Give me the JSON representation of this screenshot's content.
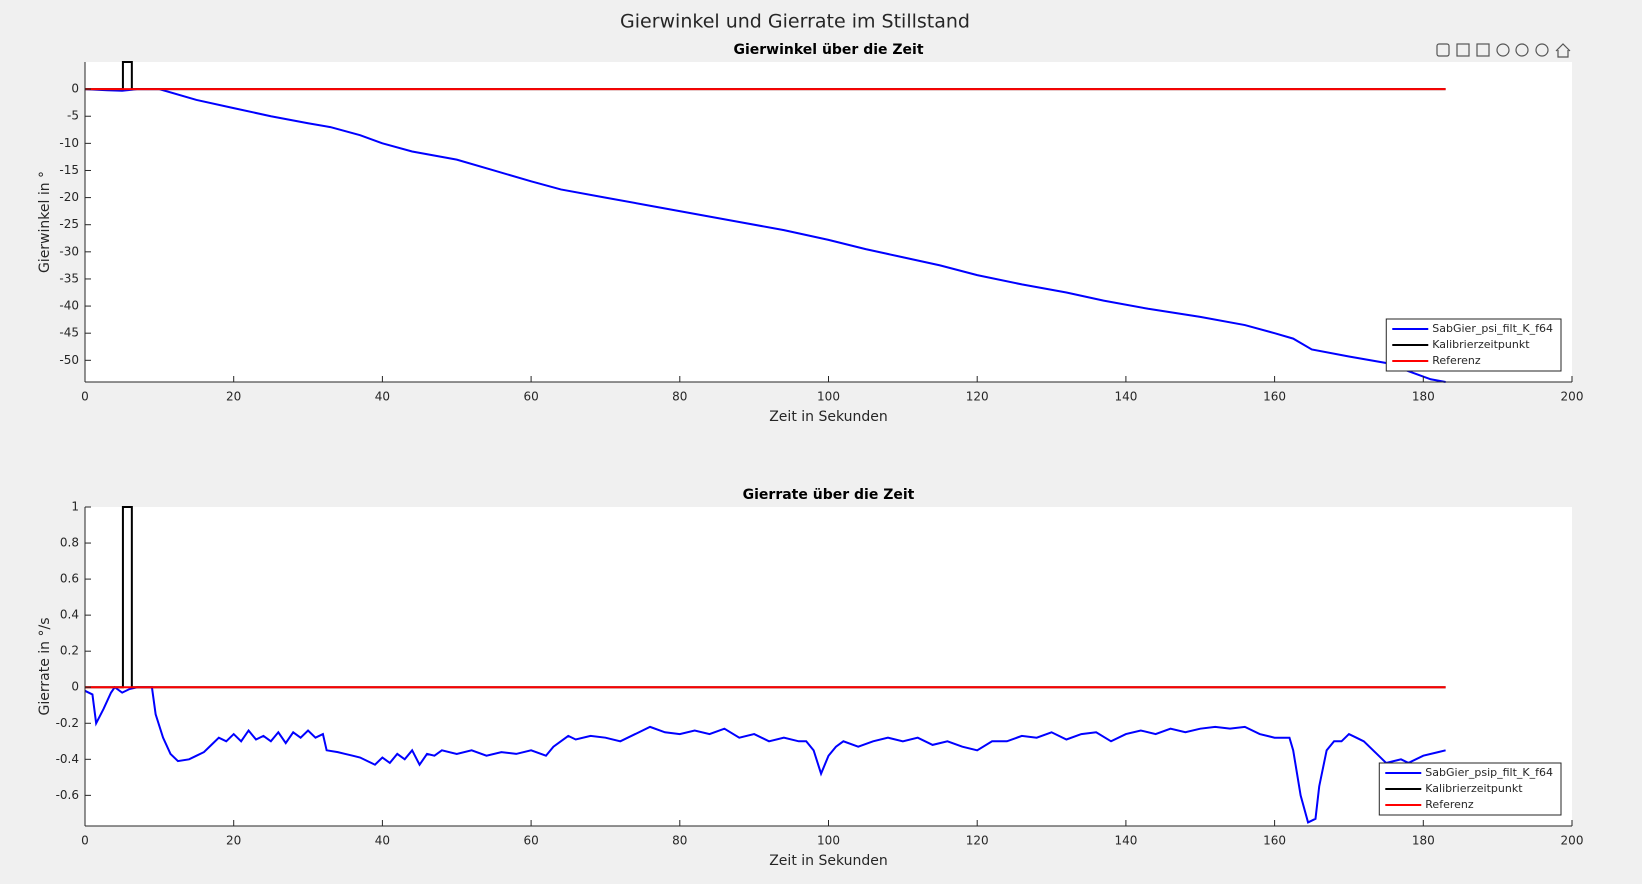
{
  "title": "Gierwinkel und Gierrate im Stillstand",
  "chart_data": [
    {
      "type": "line",
      "title": "Gierwinkel über die Zeit",
      "xlabel": "Zeit in Sekunden",
      "ylabel": "Gierwinkel in °",
      "xlim": [
        0,
        200
      ],
      "xticks": [
        0,
        20,
        40,
        60,
        80,
        100,
        120,
        140,
        160,
        180,
        200
      ],
      "ylim": [
        -54,
        5
      ],
      "yticks": [
        -50,
        -45,
        -40,
        -35,
        -30,
        -25,
        -20,
        -15,
        -10,
        -5,
        0
      ],
      "legend": "lower right",
      "series": [
        {
          "name": "SabGier_psi_filt_K_f64",
          "color": "#0000ff",
          "x": [
            0,
            3,
            5,
            7,
            10,
            15,
            20,
            25,
            30,
            33,
            37,
            40,
            44,
            50,
            55,
            60,
            64,
            70,
            76,
            82,
            88,
            94,
            100,
            105,
            110,
            115,
            120,
            126,
            132,
            137,
            143,
            150,
            156,
            160,
            162.5,
            165,
            170,
            175,
            178,
            181,
            183
          ],
          "values": [
            0,
            -0.2,
            -0.3,
            0,
            0,
            -2,
            -3.5,
            -5,
            -6.3,
            -7,
            -8.5,
            -10,
            -11.5,
            -13,
            -15,
            -17,
            -18.5,
            -20,
            -21.5,
            -23,
            -24.5,
            -26,
            -27.8,
            -29.5,
            -31,
            -32.5,
            -34.3,
            -36,
            -37.5,
            -39,
            -40.5,
            -42,
            -43.5,
            -45,
            -46,
            -48,
            -49.3,
            -50.5,
            -52,
            -53.5,
            -54
          ]
        },
        {
          "name": "Kalibrierzeitpunkt",
          "color": "#000000",
          "x": [
            0,
            5.1,
            5.1,
            6.3,
            6.3,
            183
          ],
          "values": [
            0,
            0,
            5,
            5,
            0,
            0
          ]
        },
        {
          "name": "Referenz",
          "color": "#ff0000",
          "x": [
            0,
            183
          ],
          "values": [
            0,
            0
          ]
        }
      ]
    },
    {
      "type": "line",
      "title": "Gierrate über die Zeit",
      "xlabel": "Zeit in Sekunden",
      "ylabel": "Gierrate in °/s",
      "xlim": [
        0,
        200
      ],
      "xticks": [
        0,
        20,
        40,
        60,
        80,
        100,
        120,
        140,
        160,
        180,
        200
      ],
      "ylim": [
        -0.77,
        1
      ],
      "yticks": [
        -0.6,
        -0.4,
        -0.2,
        0,
        0.2,
        0.4,
        0.6,
        0.8,
        1
      ],
      "legend": "lower right",
      "series": [
        {
          "name": "SabGier_psip_filt_K_f64",
          "color": "#0000ff",
          "x": [
            0,
            1,
            1.5,
            2.5,
            3.5,
            4,
            5,
            6,
            7,
            9,
            9.5,
            10.5,
            11.5,
            12.5,
            14,
            15,
            16,
            17,
            18,
            19,
            20,
            21,
            22,
            23,
            24,
            25,
            26,
            27,
            28,
            29,
            30,
            31,
            32,
            32.5,
            34,
            35,
            36,
            37,
            38,
            39,
            40,
            41,
            42,
            43,
            44,
            45,
            46,
            47,
            48,
            50,
            52,
            54,
            56,
            58,
            60,
            62,
            63,
            64,
            65,
            66,
            68,
            70,
            72,
            74,
            76,
            78,
            80,
            82,
            84,
            86,
            88,
            90,
            92,
            94,
            96,
            97,
            98,
            99,
            100,
            101,
            102,
            104,
            106,
            108,
            110,
            112,
            114,
            116,
            118,
            120,
            122,
            124,
            126,
            128,
            130,
            132,
            134,
            136,
            138,
            140,
            142,
            144,
            146,
            148,
            150,
            152,
            154,
            156,
            158,
            160,
            162,
            162.5,
            163.5,
            164.5,
            165.5,
            166,
            167,
            168,
            169,
            170,
            171,
            172,
            174,
            175,
            177,
            178,
            180,
            182,
            183
          ],
          "values": [
            -0.02,
            -0.04,
            -0.2,
            -0.12,
            -0.03,
            0,
            -0.03,
            -0.01,
            0,
            0,
            -0.15,
            -0.28,
            -0.37,
            -0.41,
            -0.4,
            -0.38,
            -0.36,
            -0.32,
            -0.28,
            -0.3,
            -0.26,
            -0.3,
            -0.24,
            -0.29,
            -0.27,
            -0.3,
            -0.25,
            -0.31,
            -0.25,
            -0.28,
            -0.24,
            -0.28,
            -0.26,
            -0.35,
            -0.36,
            -0.37,
            -0.38,
            -0.39,
            -0.41,
            -0.43,
            -0.39,
            -0.42,
            -0.37,
            -0.4,
            -0.35,
            -0.43,
            -0.37,
            -0.38,
            -0.35,
            -0.37,
            -0.35,
            -0.38,
            -0.36,
            -0.37,
            -0.35,
            -0.38,
            -0.33,
            -0.3,
            -0.27,
            -0.29,
            -0.27,
            -0.28,
            -0.3,
            -0.26,
            -0.22,
            -0.25,
            -0.26,
            -0.24,
            -0.26,
            -0.23,
            -0.28,
            -0.26,
            -0.3,
            -0.28,
            -0.3,
            -0.3,
            -0.35,
            -0.48,
            -0.38,
            -0.33,
            -0.3,
            -0.33,
            -0.3,
            -0.28,
            -0.3,
            -0.28,
            -0.32,
            -0.3,
            -0.33,
            -0.35,
            -0.3,
            -0.3,
            -0.27,
            -0.28,
            -0.25,
            -0.29,
            -0.26,
            -0.25,
            -0.3,
            -0.26,
            -0.24,
            -0.26,
            -0.23,
            -0.25,
            -0.23,
            -0.22,
            -0.23,
            -0.22,
            -0.26,
            -0.28,
            -0.28,
            -0.35,
            -0.6,
            -0.75,
            -0.73,
            -0.55,
            -0.35,
            -0.3,
            -0.3,
            -0.26,
            -0.28,
            -0.3,
            -0.38,
            -0.42,
            -0.4,
            -0.42,
            -0.38,
            -0.36,
            -0.35
          ]
        },
        {
          "name": "Kalibrierzeitpunkt",
          "color": "#000000",
          "x": [
            0,
            5.1,
            5.1,
            6.3,
            6.3,
            183
          ],
          "values": [
            0,
            0,
            1,
            1,
            0,
            0
          ]
        },
        {
          "name": "Referenz",
          "color": "#ff0000",
          "x": [
            0,
            183
          ],
          "values": [
            0,
            0
          ]
        }
      ]
    }
  ]
}
